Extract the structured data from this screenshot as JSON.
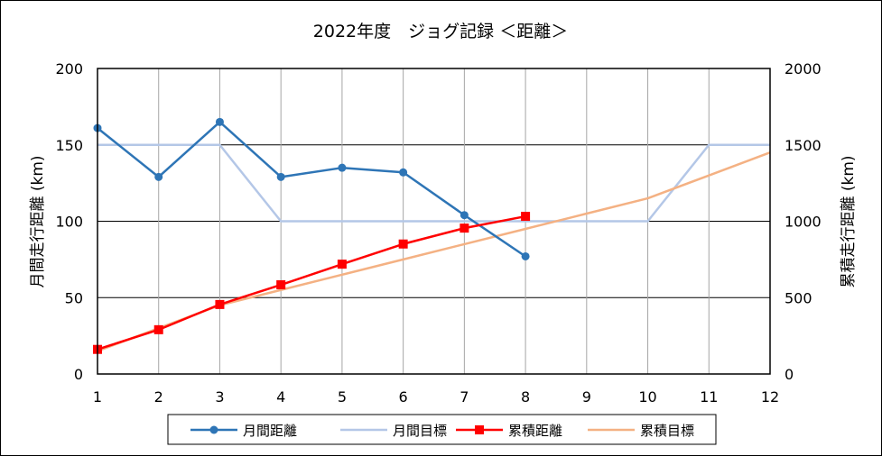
{
  "chart_data": {
    "type": "line",
    "title": "2022年度　ジョグ記録 ＜距離＞",
    "xlabel": "",
    "ylabel_left": "月間走行距離 (km)",
    "ylabel_right": "累積走行距離 (km)",
    "x": [
      1,
      2,
      3,
      4,
      5,
      6,
      7,
      8,
      9,
      10,
      11,
      12
    ],
    "x_ticks": [
      "1",
      "2",
      "3",
      "4",
      "5",
      "6",
      "7",
      "8",
      "9",
      "10",
      "11",
      "12"
    ],
    "ylim_left": [
      0,
      200
    ],
    "ylim_right": [
      0,
      2000
    ],
    "yticks_left": [
      "0",
      "50",
      "100",
      "150",
      "200"
    ],
    "yticks_right": [
      "0",
      "500",
      "1000",
      "1500",
      "2000"
    ],
    "grid": true,
    "legend_position": "bottom",
    "series": [
      {
        "name": "月間距離",
        "axis": "left",
        "color": "#2e75b6",
        "marker": "circle",
        "values": [
          161,
          129,
          165,
          129,
          135,
          132,
          104,
          77,
          null,
          null,
          null,
          null
        ]
      },
      {
        "name": "月間目標",
        "axis": "left",
        "color": "#b4c7e7",
        "marker": "none",
        "values": [
          150,
          150,
          150,
          100,
          100,
          100,
          100,
          100,
          100,
          100,
          150,
          150
        ]
      },
      {
        "name": "累積距離",
        "axis": "right",
        "color": "#ff0000",
        "marker": "square",
        "values": [
          161,
          290,
          455,
          584,
          719,
          851,
          955,
          1032,
          null,
          null,
          null,
          null
        ]
      },
      {
        "name": "累積目標",
        "axis": "right",
        "color": "#f4b183",
        "marker": "none",
        "values": [
          150,
          300,
          450,
          550,
          650,
          750,
          850,
          950,
          1050,
          1150,
          1300,
          1450
        ]
      }
    ]
  }
}
